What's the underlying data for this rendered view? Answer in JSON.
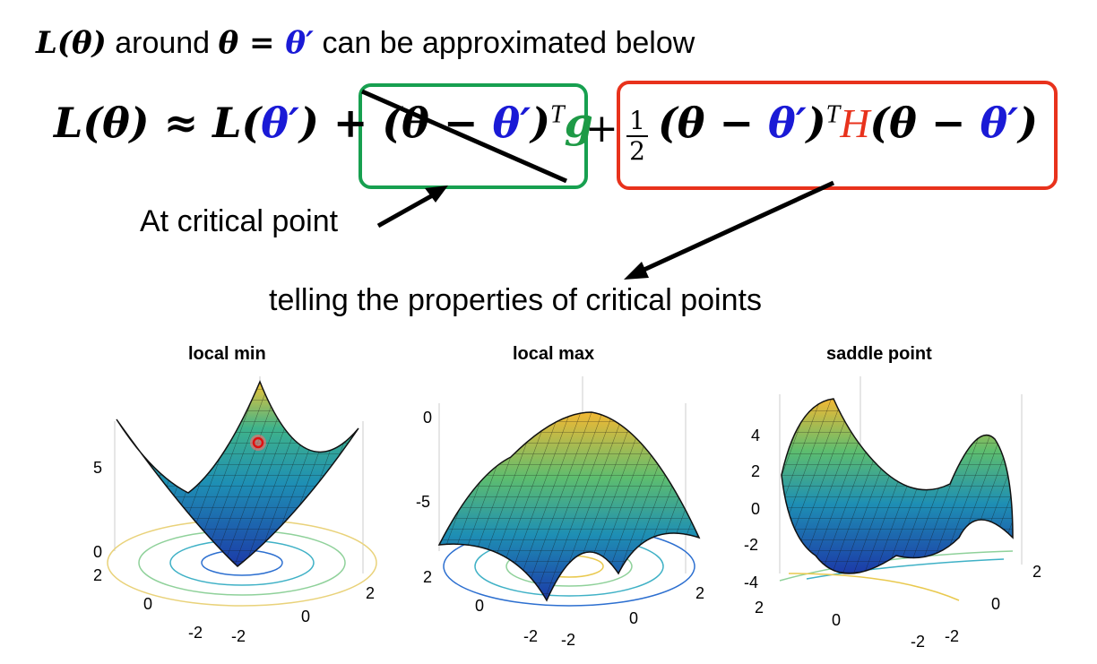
{
  "header": {
    "lhs": "L(θ)",
    "around": " around ",
    "theta_eq": "θ = ",
    "theta_prime": "θ′",
    "rest": " can be approximated below"
  },
  "formula": {
    "lhs": "L(θ) ≈ L(",
    "theta_prime": "θ′",
    "close_plus": ") + ",
    "grad_open": "(θ − ",
    "grad_tp": "θ′",
    "grad_close": ")",
    "grad_T": "T",
    "grad_g": "g",
    "plus": "+",
    "half_num": "1",
    "half_den": "2",
    "hess_open": "(θ − ",
    "hess_tp1": "θ′",
    "hess_close1": ")",
    "hess_T": "T",
    "hess_H": "H",
    "hess_open2": "(θ − ",
    "hess_tp2": "θ′",
    "hess_close2": ")"
  },
  "labels": {
    "critical": "At critical point",
    "properties": "telling the properties of critical points"
  },
  "colors": {
    "blue": "#1a1ad6",
    "red": "#e8321c",
    "green": "#1e9a46"
  },
  "plots": [
    {
      "title": "local min",
      "z_ticks": [
        "0",
        "5"
      ],
      "x_ticks": [
        "-2",
        "0",
        "2"
      ],
      "y_ticks": [
        "-2",
        "0",
        "2"
      ],
      "highlight": "red-marker"
    },
    {
      "title": "local max",
      "z_ticks": [
        "-5",
        "0"
      ],
      "x_ticks": [
        "-2",
        "0",
        "2"
      ],
      "y_ticks": [
        "-2",
        "0",
        "2"
      ]
    },
    {
      "title": "saddle point",
      "z_ticks": [
        "-4",
        "-2",
        "0",
        "2",
        "4"
      ],
      "x_ticks": [
        "-2",
        "0",
        "2"
      ],
      "y_ticks": [
        "-2",
        "0",
        "2"
      ]
    }
  ]
}
